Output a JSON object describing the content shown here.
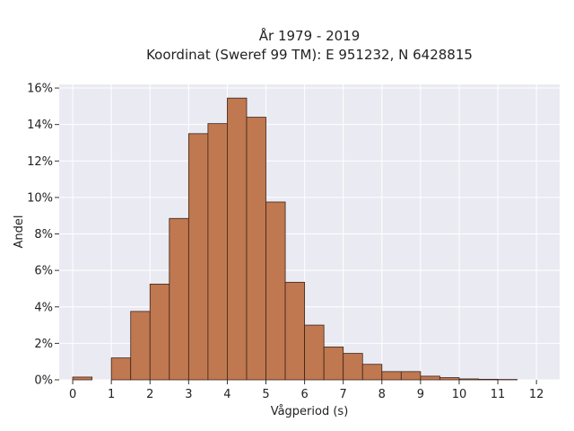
{
  "chart_data": {
    "type": "bar",
    "title_lines": [
      "År 1979 - 2019",
      "Koordinat (Sweref 99 TM): E 951232, N 6428815"
    ],
    "xlabel": "Vågperiod (s)",
    "ylabel": "Andel",
    "xlim": [
      -0.35,
      12.6
    ],
    "ylim": [
      0,
      16.2
    ],
    "x_ticks": [
      0,
      1,
      2,
      3,
      4,
      5,
      6,
      7,
      8,
      9,
      10,
      11,
      12
    ],
    "y_ticks": [
      0,
      2,
      4,
      6,
      8,
      10,
      12,
      14,
      16
    ],
    "y_tick_labels": [
      "0%",
      "2%",
      "4%",
      "6%",
      "8%",
      "10%",
      "12%",
      "14%",
      "16%"
    ],
    "bin_width": 0.5,
    "bins": [
      {
        "x0": 0.0,
        "value": 0.15
      },
      {
        "x0": 1.0,
        "value": 1.2
      },
      {
        "x0": 1.5,
        "value": 3.75
      },
      {
        "x0": 2.0,
        "value": 5.25
      },
      {
        "x0": 2.5,
        "value": 8.85
      },
      {
        "x0": 3.0,
        "value": 13.5
      },
      {
        "x0": 3.5,
        "value": 14.05
      },
      {
        "x0": 4.0,
        "value": 15.45
      },
      {
        "x0": 4.5,
        "value": 14.4
      },
      {
        "x0": 5.0,
        "value": 9.75
      },
      {
        "x0": 5.5,
        "value": 5.35
      },
      {
        "x0": 6.0,
        "value": 3.0
      },
      {
        "x0": 6.5,
        "value": 1.8
      },
      {
        "x0": 7.0,
        "value": 1.45
      },
      {
        "x0": 7.5,
        "value": 0.85
      },
      {
        "x0": 8.0,
        "value": 0.45
      },
      {
        "x0": 8.5,
        "value": 0.45
      },
      {
        "x0": 9.0,
        "value": 0.2
      },
      {
        "x0": 9.5,
        "value": 0.12
      },
      {
        "x0": 10.0,
        "value": 0.05
      },
      {
        "x0": 10.5,
        "value": 0.03
      },
      {
        "x0": 11.0,
        "value": 0.02
      }
    ],
    "grid": true,
    "colors": {
      "bar_fill": "#c07850",
      "bar_edge": "#3d2418",
      "plot_background": "#eaeaf2",
      "grid": "#ffffff"
    }
  }
}
